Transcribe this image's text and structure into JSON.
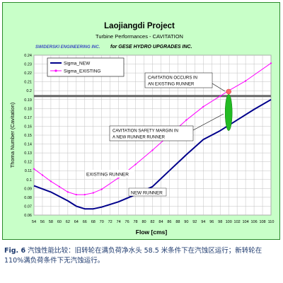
{
  "chart_data": {
    "type": "line",
    "title": "Laojiangdi Project",
    "subtitle": "Turbine Performances - CAVITATION",
    "company_left": "SWIDERSKI ENGINEERING INC.",
    "company_right": "for GESE HYDRO UPGRADES INC.",
    "xlabel": "Flow [cms]",
    "ylabel": "Thoma Number (Cavitation)",
    "xlim": [
      54,
      110
    ],
    "ylim": [
      0.06,
      0.24
    ],
    "x_ticks": [
      54,
      56,
      58,
      60,
      62,
      64,
      66,
      68,
      70,
      72,
      74,
      76,
      78,
      80,
      82,
      84,
      86,
      88,
      90,
      92,
      94,
      96,
      98,
      100,
      102,
      104,
      106,
      108,
      110
    ],
    "y_ticks": [
      0.06,
      0.07,
      0.08,
      0.09,
      0.1,
      0.11,
      0.12,
      0.13,
      0.14,
      0.15,
      0.16,
      0.17,
      0.18,
      0.19,
      0.2,
      0.21,
      0.22,
      0.23,
      0.24
    ],
    "y_tick_labels": [
      "0.06",
      "0.07",
      "0.08",
      "0.09",
      "0.1",
      "0.11",
      "0.12",
      "0.13",
      "0.14",
      "0.15",
      "0.16",
      "0.17",
      "0.18",
      "0.19",
      "0.2",
      "0.21",
      "0.22",
      "0.23",
      "0.24"
    ],
    "grid": true,
    "legend_position": "top-left",
    "series": [
      {
        "name": "Sigma_NEW",
        "color": "#00008b",
        "x": [
          54,
          58,
          62,
          64,
          66,
          68,
          70,
          72,
          74,
          78,
          82,
          86,
          90,
          94,
          98,
          102,
          106,
          110
        ],
        "y": [
          0.093,
          0.086,
          0.076,
          0.07,
          0.067,
          0.067,
          0.069,
          0.072,
          0.075,
          0.083,
          0.092,
          0.11,
          0.128,
          0.145,
          0.155,
          0.167,
          0.179,
          0.19
        ]
      },
      {
        "name": "Sigma_EXISTING",
        "color": "#ff00ff",
        "x": [
          54,
          56,
          58,
          60,
          62,
          64,
          66,
          68,
          70,
          74,
          78,
          82,
          86,
          90,
          94,
          98,
          100,
          104,
          110
        ],
        "y": [
          0.112,
          0.105,
          0.098,
          0.092,
          0.086,
          0.083,
          0.083,
          0.085,
          0.089,
          0.102,
          0.117,
          0.133,
          0.15,
          0.167,
          0.182,
          0.194,
          0.2,
          0.211,
          0.231
        ]
      }
    ],
    "threshold": {
      "y": 0.194,
      "color": "#666666"
    },
    "annotations": [
      {
        "text": [
          "CAVITATION OCCURS IN",
          "AN EXISTING RUNNER"
        ]
      },
      {
        "text": [
          "CAVITATION SAFETY MARGIN IN",
          "A NEW RUNNER RUNNER"
        ]
      },
      {
        "text": [
          "EXISTING RUNNER"
        ]
      },
      {
        "text": [
          "NEW RUNNER"
        ]
      }
    ],
    "markers": {
      "point": {
        "x": 100,
        "y": 0.199,
        "color": "#ff6666"
      },
      "margin": {
        "x": 100,
        "y_from": 0.155,
        "y_to": 0.196,
        "color": "#22bb22"
      }
    }
  },
  "caption": {
    "label": "Fig. 6",
    "text": "汽蚀性能比较：旧转轮在满负荷净水头 58.5 米条件下在汽蚀区运行；新转轮在 110%满负荷条件下无汽蚀运行。"
  }
}
